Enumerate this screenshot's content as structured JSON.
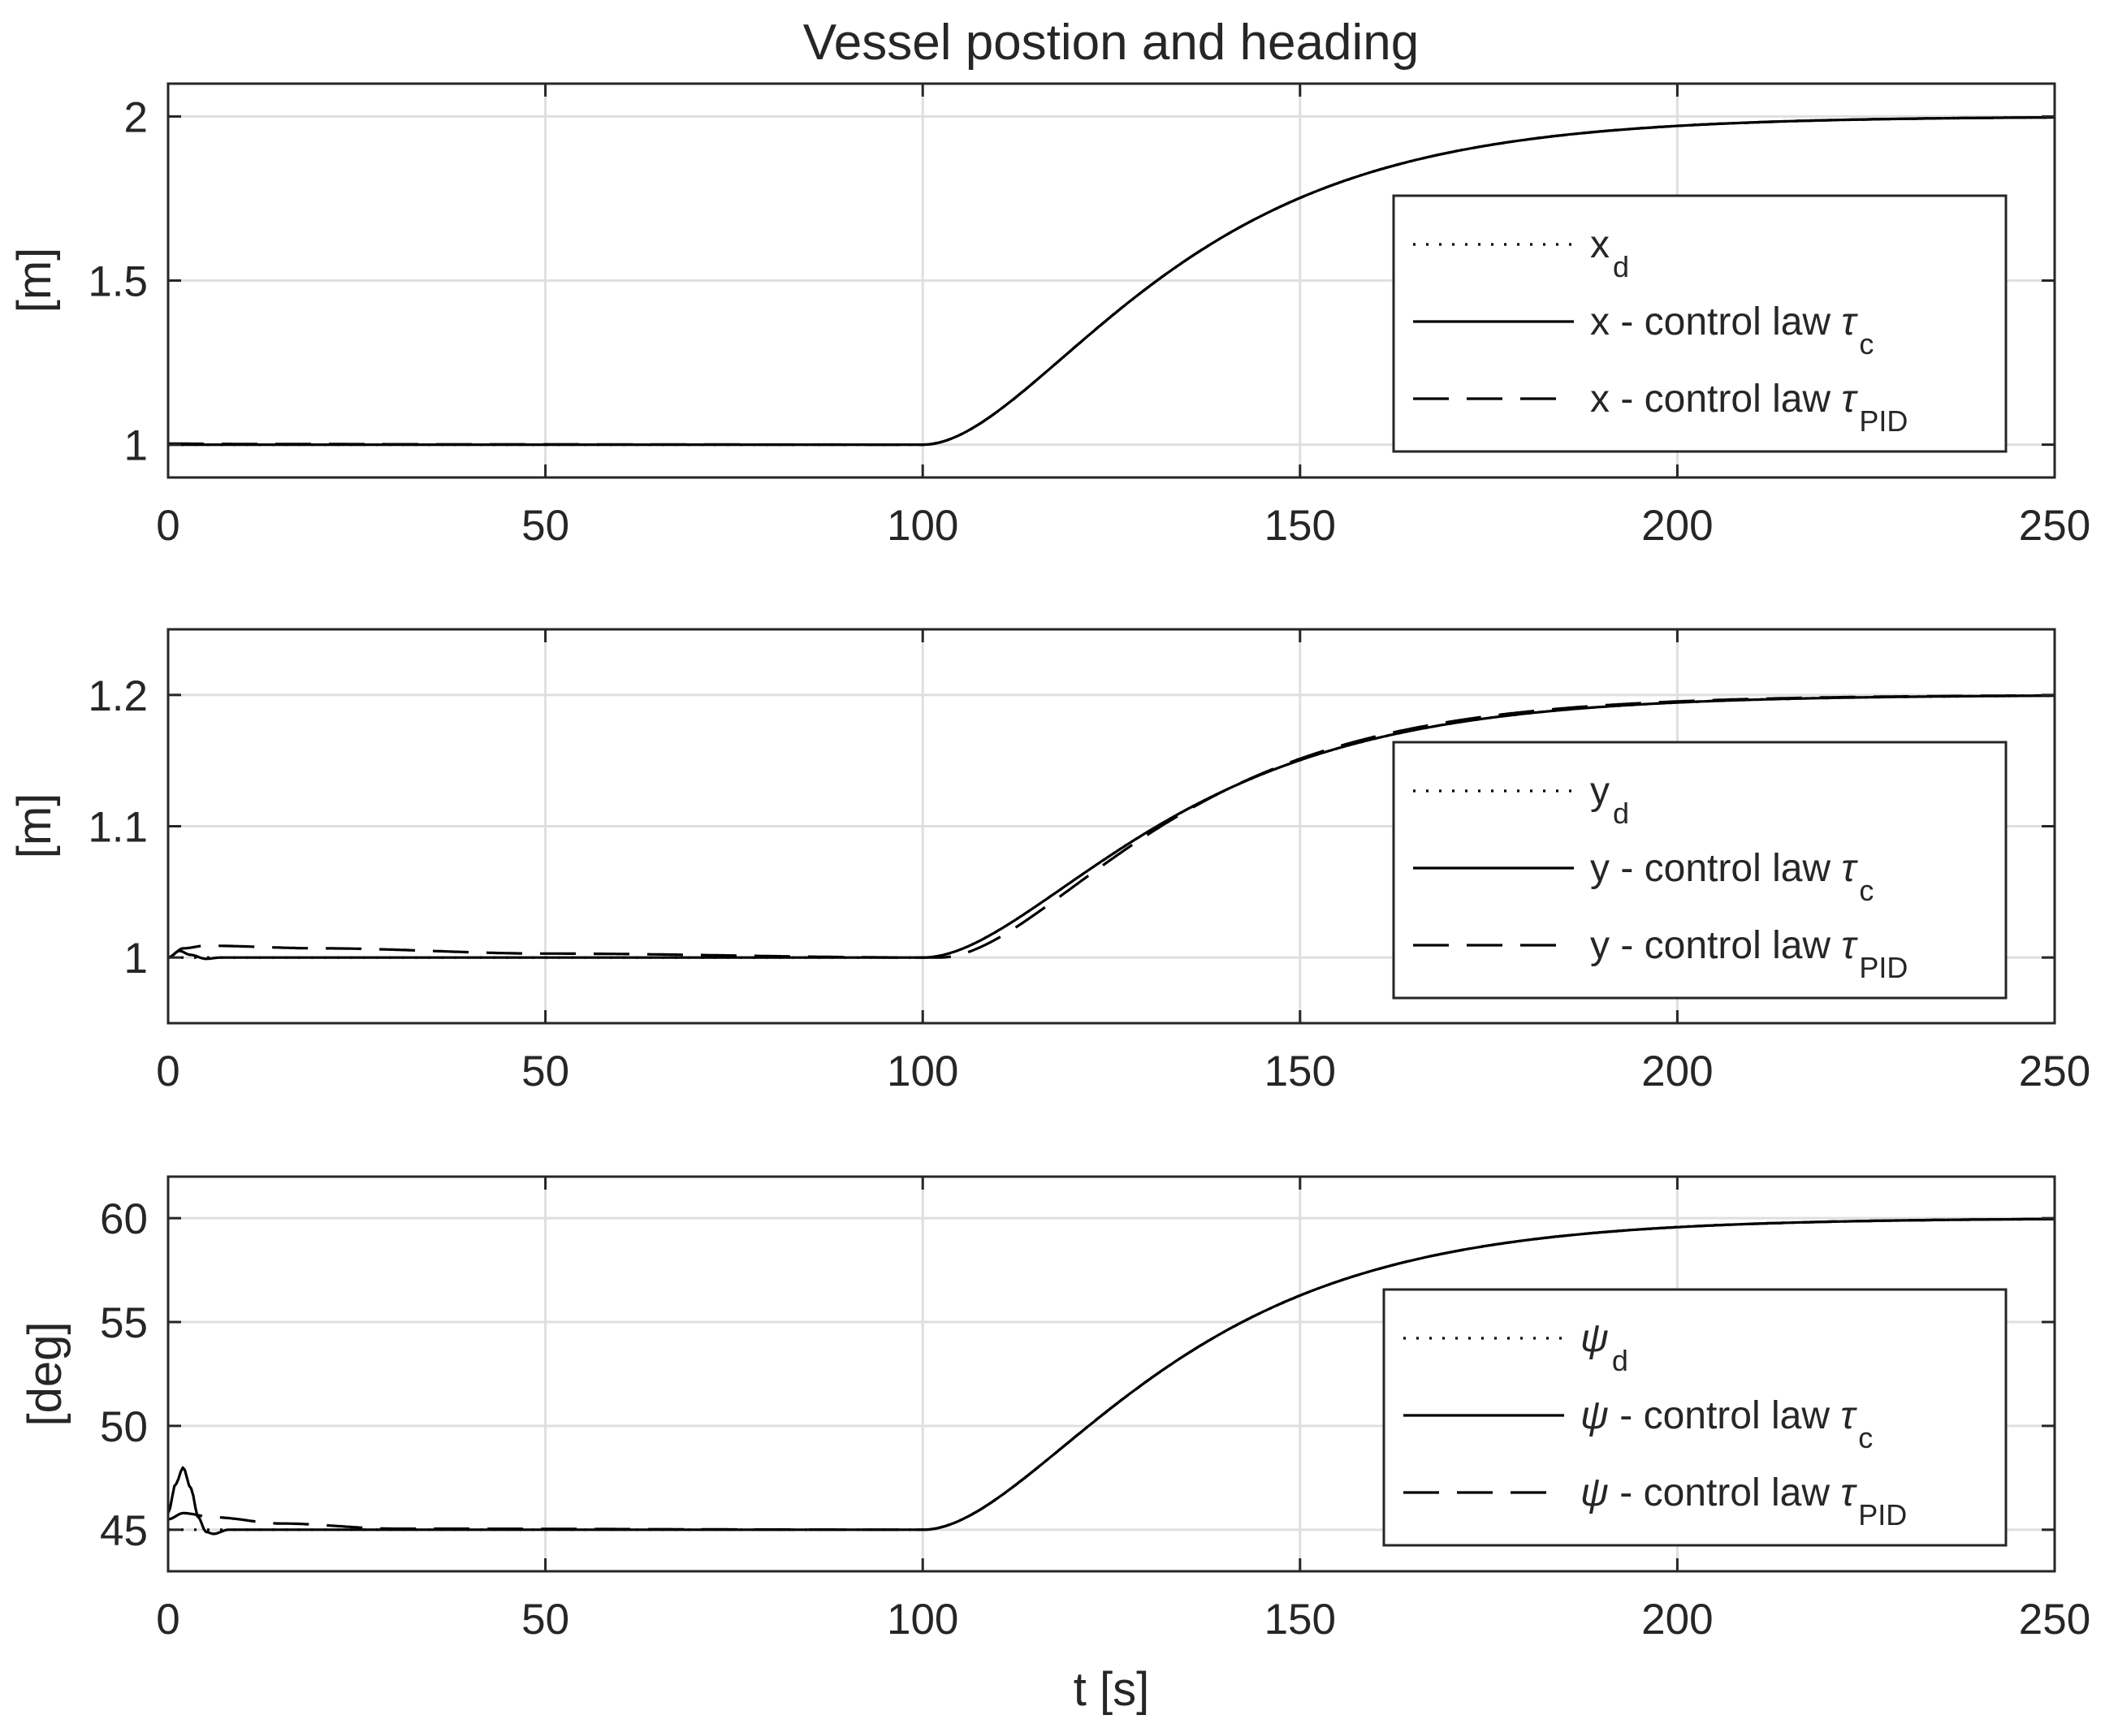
{
  "chart_data": [
    {
      "type": "line",
      "title": "Vessel postion and heading",
      "xlabel": "",
      "ylabel": "[m]",
      "xlim": [
        0,
        250
      ],
      "ylim": [
        0.9,
        2.1
      ],
      "xticks": [
        0,
        50,
        100,
        150,
        200,
        250
      ],
      "xtick_labels": [
        "0",
        "50",
        "100",
        "150",
        "200",
        "250"
      ],
      "yticks": [
        1,
        1.5,
        2
      ],
      "ytick_labels": [
        "1",
        "1.5",
        "2"
      ],
      "grid": true,
      "legend_position": "right",
      "step": {
        "t0": 100,
        "tau": 18.5,
        "start": 1.0,
        "end": 2.0
      },
      "series": [
        {
          "name": "desired",
          "style": "dotted",
          "legend_symbol": "x",
          "legend_sub": "d",
          "legend_text": "",
          "transient": []
        },
        {
          "name": "control law tau_c",
          "style": "solid",
          "legend_symbol": "x",
          "legend_text": " - control law ",
          "legend_tau": "τ",
          "legend_sub": "c",
          "transient": []
        },
        {
          "name": "control law tau_PID",
          "style": "dashed",
          "legend_symbol": "x",
          "legend_text": " - control law ",
          "legend_tau": "τ",
          "legend_sub": "PID",
          "transient": [
            [
              0,
              1.003
            ],
            [
              10,
              1.002
            ],
            [
              40,
              1.001
            ],
            [
              100,
              1.0
            ]
          ]
        }
      ]
    },
    {
      "type": "line",
      "xlabel": "",
      "ylabel": "[m]",
      "xlim": [
        0,
        250
      ],
      "ylim": [
        0.95,
        1.25
      ],
      "xticks": [
        0,
        50,
        100,
        150,
        200,
        250
      ],
      "xtick_labels": [
        "0",
        "50",
        "100",
        "150",
        "200",
        "250"
      ],
      "yticks": [
        1,
        1.1,
        1.2
      ],
      "ytick_labels": [
        "1",
        "1.1",
        "1.2"
      ],
      "grid": true,
      "legend_position": "right",
      "step": {
        "t0": 100,
        "tau": 18.5,
        "start": 1.0,
        "end": 1.2
      },
      "series": [
        {
          "name": "desired",
          "style": "dotted",
          "legend_symbol": "y",
          "legend_sub": "d",
          "legend_text": "",
          "transient": []
        },
        {
          "name": "control law tau_c",
          "style": "solid",
          "legend_symbol": "y",
          "legend_text": " - control law ",
          "legend_tau": "τ",
          "legend_sub": "c",
          "transient": [
            [
              0,
              1.0
            ],
            [
              1.5,
              1.005
            ],
            [
              3,
              1.002
            ],
            [
              5,
              0.999
            ],
            [
              7,
              1.0
            ],
            [
              100,
              1.0
            ]
          ]
        },
        {
          "name": "control law tau_PID",
          "style": "dashed",
          "legend_symbol": "y",
          "legend_text": " - control law ",
          "legend_tau": "τ",
          "legend_sub": "PID",
          "transient": [
            [
              0,
              1.0
            ],
            [
              2,
              1.007
            ],
            [
              5,
              1.009
            ],
            [
              20,
              1.007
            ],
            [
              50,
              1.003
            ],
            [
              100,
              1.0
            ]
          ]
        }
      ]
    },
    {
      "type": "line",
      "xlabel": "t [s]",
      "ylabel": "[deg]",
      "xlim": [
        0,
        250
      ],
      "ylim": [
        43,
        62
      ],
      "xticks": [
        0,
        50,
        100,
        150,
        200,
        250
      ],
      "xtick_labels": [
        "0",
        "50",
        "100",
        "150",
        "200",
        "250"
      ],
      "yticks": [
        45,
        50,
        55,
        60
      ],
      "ytick_labels": [
        "45",
        "50",
        "55",
        "60"
      ],
      "grid": true,
      "legend_position": "right",
      "step": {
        "t0": 100,
        "tau": 18.5,
        "start": 45,
        "end": 60
      },
      "series": [
        {
          "name": "desired",
          "style": "dotted",
          "legend_symbol": "ψ",
          "legend_sub": "d",
          "legend_text": "",
          "transient": []
        },
        {
          "name": "control law tau_c",
          "style": "solid",
          "legend_symbol": "ψ",
          "legend_text": " - control law ",
          "legend_tau": "τ",
          "legend_sub": "c",
          "transient": [
            [
              0,
              45.8
            ],
            [
              1,
              47.2
            ],
            [
              2,
              48.0
            ],
            [
              3,
              47.0
            ],
            [
              4,
              45.6
            ],
            [
              5,
              44.9
            ],
            [
              6,
              44.8
            ],
            [
              8,
              45.0
            ],
            [
              100,
              45.0
            ]
          ]
        },
        {
          "name": "control law tau_PID",
          "style": "dashed",
          "legend_symbol": "ψ",
          "legend_text": " - control law ",
          "legend_tau": "τ",
          "legend_sub": "PID",
          "transient": [
            [
              0,
              45.5
            ],
            [
              2,
              45.8
            ],
            [
              6,
              45.6
            ],
            [
              15,
              45.3
            ],
            [
              30,
              45.05
            ],
            [
              100,
              45.0
            ]
          ]
        }
      ]
    }
  ]
}
